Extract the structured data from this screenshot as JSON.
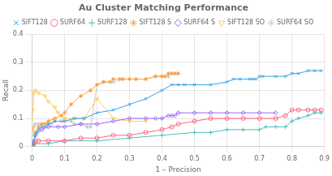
{
  "chart_data": {
    "type": "line",
    "title": "Au Cluster Matching Performance",
    "xlabel": "1 – Precision",
    "ylabel": "Recall",
    "xlim": [
      0,
      0.9
    ],
    "ylim": [
      0,
      0.4
    ],
    "xticks": [
      0,
      0.1,
      0.2,
      0.3,
      0.4,
      0.5,
      0.6,
      0.7,
      0.8,
      0.9
    ],
    "yticks": [
      0,
      0.1,
      0.2,
      0.3,
      0.4
    ],
    "grid": true,
    "legend": "top",
    "series": [
      {
        "name": "SIFT128",
        "marker": "x",
        "x": [
          0.0,
          0.005,
          0.01,
          0.015,
          0.02,
          0.03,
          0.04,
          0.05,
          0.07,
          0.1,
          0.13,
          0.16,
          0.2,
          0.25,
          0.3,
          0.35,
          0.4,
          0.43,
          0.45,
          0.47,
          0.5,
          0.55,
          0.6,
          0.62,
          0.64,
          0.67,
          0.68,
          0.69,
          0.7,
          0.71,
          0.75,
          0.78,
          0.8,
          0.82,
          0.85,
          0.87,
          0.89
        ],
        "values": [
          0.01,
          0.02,
          0.04,
          0.05,
          0.06,
          0.07,
          0.07,
          0.08,
          0.09,
          0.09,
          0.1,
          0.1,
          0.12,
          0.13,
          0.15,
          0.17,
          0.2,
          0.22,
          0.22,
          0.22,
          0.22,
          0.22,
          0.23,
          0.24,
          0.24,
          0.24,
          0.24,
          0.24,
          0.25,
          0.25,
          0.25,
          0.25,
          0.26,
          0.26,
          0.27,
          0.27,
          0.27
        ]
      },
      {
        "name": "SURF64",
        "marker": "circle",
        "x": [
          0.0,
          0.005,
          0.01,
          0.02,
          0.05,
          0.1,
          0.15,
          0.2,
          0.25,
          0.3,
          0.35,
          0.4,
          0.43,
          0.45,
          0.5,
          0.55,
          0.6,
          0.65,
          0.7,
          0.75,
          0.78,
          0.8,
          0.82,
          0.85,
          0.87,
          0.89
        ],
        "values": [
          0.005,
          0.01,
          0.02,
          0.02,
          0.02,
          0.02,
          0.03,
          0.03,
          0.04,
          0.04,
          0.05,
          0.06,
          0.07,
          0.08,
          0.09,
          0.1,
          0.1,
          0.1,
          0.1,
          0.1,
          0.11,
          0.13,
          0.13,
          0.13,
          0.13,
          0.13
        ]
      },
      {
        "name": "SURF128",
        "marker": "plus",
        "x": [
          0.0,
          0.005,
          0.01,
          0.05,
          0.1,
          0.2,
          0.3,
          0.4,
          0.5,
          0.55,
          0.6,
          0.65,
          0.7,
          0.72,
          0.75,
          0.78,
          0.8,
          0.82,
          0.85,
          0.87,
          0.89
        ],
        "values": [
          0.002,
          0.005,
          0.01,
          0.01,
          0.02,
          0.02,
          0.03,
          0.04,
          0.05,
          0.05,
          0.06,
          0.06,
          0.06,
          0.07,
          0.07,
          0.07,
          0.09,
          0.1,
          0.11,
          0.12,
          0.12
        ]
      },
      {
        "name": "SIFT128 S",
        "marker": "star",
        "x": [
          0.0,
          0.005,
          0.01,
          0.02,
          0.03,
          0.04,
          0.05,
          0.07,
          0.09,
          0.1,
          0.12,
          0.15,
          0.18,
          0.2,
          0.22,
          0.24,
          0.25,
          0.27,
          0.28,
          0.3,
          0.32,
          0.35,
          0.38,
          0.4,
          0.41,
          0.42,
          0.43,
          0.44,
          0.45
        ],
        "values": [
          0.005,
          0.01,
          0.05,
          0.07,
          0.08,
          0.08,
          0.09,
          0.1,
          0.11,
          0.12,
          0.15,
          0.18,
          0.2,
          0.22,
          0.23,
          0.23,
          0.24,
          0.24,
          0.24,
          0.24,
          0.24,
          0.24,
          0.25,
          0.25,
          0.25,
          0.26,
          0.26,
          0.26,
          0.26
        ]
      },
      {
        "name": "SURF64 S",
        "marker": "diamond",
        "x": [
          0.0,
          0.005,
          0.01,
          0.03,
          0.05,
          0.08,
          0.1,
          0.15,
          0.2,
          0.25,
          0.3,
          0.35,
          0.38,
          0.4,
          0.42,
          0.43,
          0.44,
          0.45,
          0.5,
          0.55,
          0.6,
          0.65,
          0.7,
          0.75
        ],
        "values": [
          0.003,
          0.01,
          0.04,
          0.06,
          0.07,
          0.07,
          0.07,
          0.08,
          0.08,
          0.09,
          0.1,
          0.1,
          0.1,
          0.1,
          0.11,
          0.11,
          0.11,
          0.12,
          0.12,
          0.12,
          0.12,
          0.12,
          0.12,
          0.12
        ]
      },
      {
        "name": "SIFT128 SO",
        "marker": "triangle_down",
        "x": [
          0.0,
          0.002,
          0.005,
          0.01,
          0.02,
          0.04,
          0.05,
          0.07,
          0.08,
          0.1,
          0.13,
          0.16,
          0.2,
          0.25,
          0.3,
          0.35
        ],
        "values": [
          0.06,
          0.13,
          0.19,
          0.2,
          0.19,
          0.18,
          0.16,
          0.14,
          0.12,
          0.1,
          0.1,
          0.1,
          0.17,
          0.1,
          0.09,
          0.09
        ]
      },
      {
        "name": "SURF64 SO",
        "marker": "star",
        "x": [
          0.0,
          0.002,
          0.005,
          0.01,
          0.02,
          0.03,
          0.05,
          0.06,
          0.07,
          0.09,
          0.1,
          0.12,
          0.13,
          0.15,
          0.17,
          0.18,
          0.2,
          0.22,
          0.25,
          0.28,
          0.3,
          0.32,
          0.35,
          0.38,
          0.4,
          0.42,
          0.43,
          0.44,
          0.45
        ],
        "values": [
          0.02,
          0.06,
          0.07,
          0.08,
          0.08,
          0.08,
          0.08,
          0.08,
          0.09,
          0.09,
          0.09,
          0.09,
          0.08,
          0.08,
          0.07,
          0.07,
          0.22,
          0.23,
          0.23,
          0.24,
          0.24,
          0.24,
          0.24,
          0.25,
          0.25,
          0.25,
          0.26,
          0.26,
          0.26
        ]
      }
    ]
  }
}
